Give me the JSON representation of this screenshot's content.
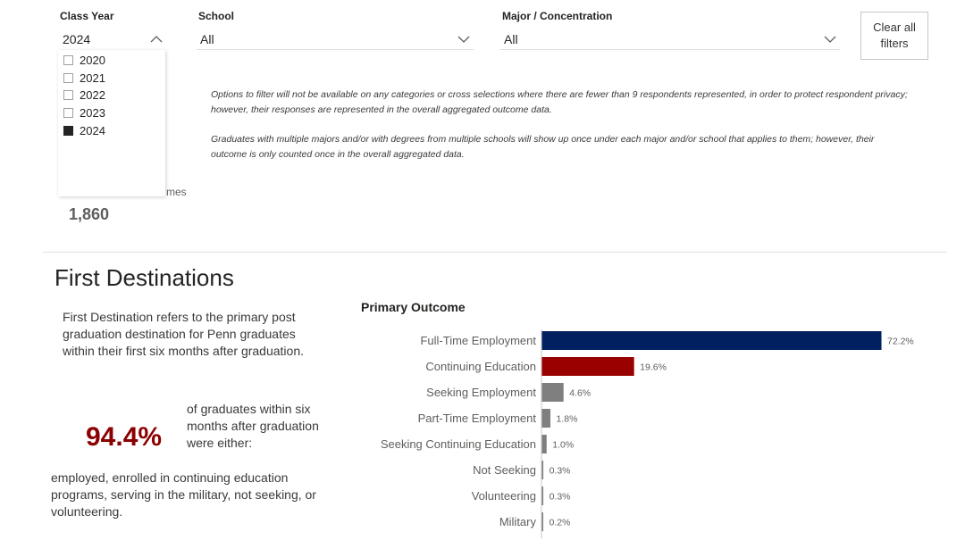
{
  "filters": {
    "class_year": {
      "label": "Class Year",
      "value": "2024",
      "options": [
        {
          "label": "2020",
          "checked": false
        },
        {
          "label": "2021",
          "checked": false
        },
        {
          "label": "2022",
          "checked": false
        },
        {
          "label": "2023",
          "checked": false
        },
        {
          "label": "2024",
          "checked": true
        }
      ]
    },
    "school": {
      "label": "School",
      "value": "All"
    },
    "major": {
      "label": "Major / Concentration",
      "value": "All"
    },
    "clear_all": "Clear all filters"
  },
  "notes": {
    "privacy": "Options to filter will not be available on any categories or cross selections where there are fewer than 9 respondents represented, in order to protect respondent privacy; however, their responses are represented in the overall aggregated outcome data.",
    "multiple": "Graduates with multiple majors and/or with degrees from multiple schools will show up once under each major and/or school that applies to them; however, their outcome is only counted once in the overall aggregated data."
  },
  "kpi": {
    "label_fragment": "mes",
    "value": "1,860"
  },
  "first_destinations": {
    "title": "First Destinations",
    "description": "First Destination refers to the primary post graduation destination for Penn graduates within their first six months after graduation.",
    "percent": "94.4%",
    "percent_caption": "of graduates within six months after graduation were either:",
    "footer": "employed, enrolled in continuing education programs, serving in the military, not seeking, or volunteering."
  },
  "colors": {
    "navy": "#002060",
    "red": "#990000",
    "grey": "#7f7f7f"
  },
  "chart_data": {
    "type": "bar",
    "orientation": "horizontal",
    "title": "Primary Outcome",
    "categories": [
      "Full-Time Employment",
      "Continuing Education",
      "Seeking Employment",
      "Part-Time Employment",
      "Seeking Continuing Education",
      "Not Seeking",
      "Volunteering",
      "Military"
    ],
    "values": [
      72.2,
      19.6,
      4.6,
      1.8,
      1.0,
      0.3,
      0.3,
      0.2
    ],
    "labels": [
      "72.2%",
      "19.6%",
      "4.6%",
      "1.8%",
      "1.0%",
      "0.3%",
      "0.3%",
      "0.2%"
    ],
    "bar_colors": [
      "navy",
      "red",
      "grey",
      "grey",
      "grey",
      "grey",
      "grey",
      "grey"
    ],
    "xlim": [
      0,
      72.2
    ],
    "unit": "%"
  }
}
